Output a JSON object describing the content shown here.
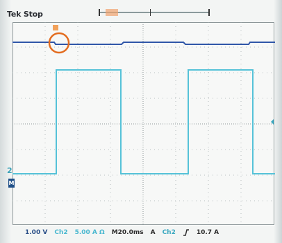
{
  "header": {
    "brand": "Tek Stop"
  },
  "channels": {
    "ch1_label": "",
    "ch1_value": "1.00 V",
    "ch2_label": "Ch2",
    "ch2_value": "5.00 A Ω",
    "timebase": "M20.0ms",
    "trigger_mode": "A",
    "trigger_channel": "Ch2",
    "trigger_level": "10.7 A"
  },
  "markers": {
    "ground2": "2",
    "ground_m": "M"
  },
  "icons": {
    "edge": "rising-edge-icon",
    "highlight": "orange-circle"
  },
  "colors": {
    "ch1": "#2f56a8",
    "ch2": "#54c2d8",
    "grid": "#9ea7aa",
    "highlight": "#e36c1f",
    "status_bg": "#1d4f8c"
  }
}
